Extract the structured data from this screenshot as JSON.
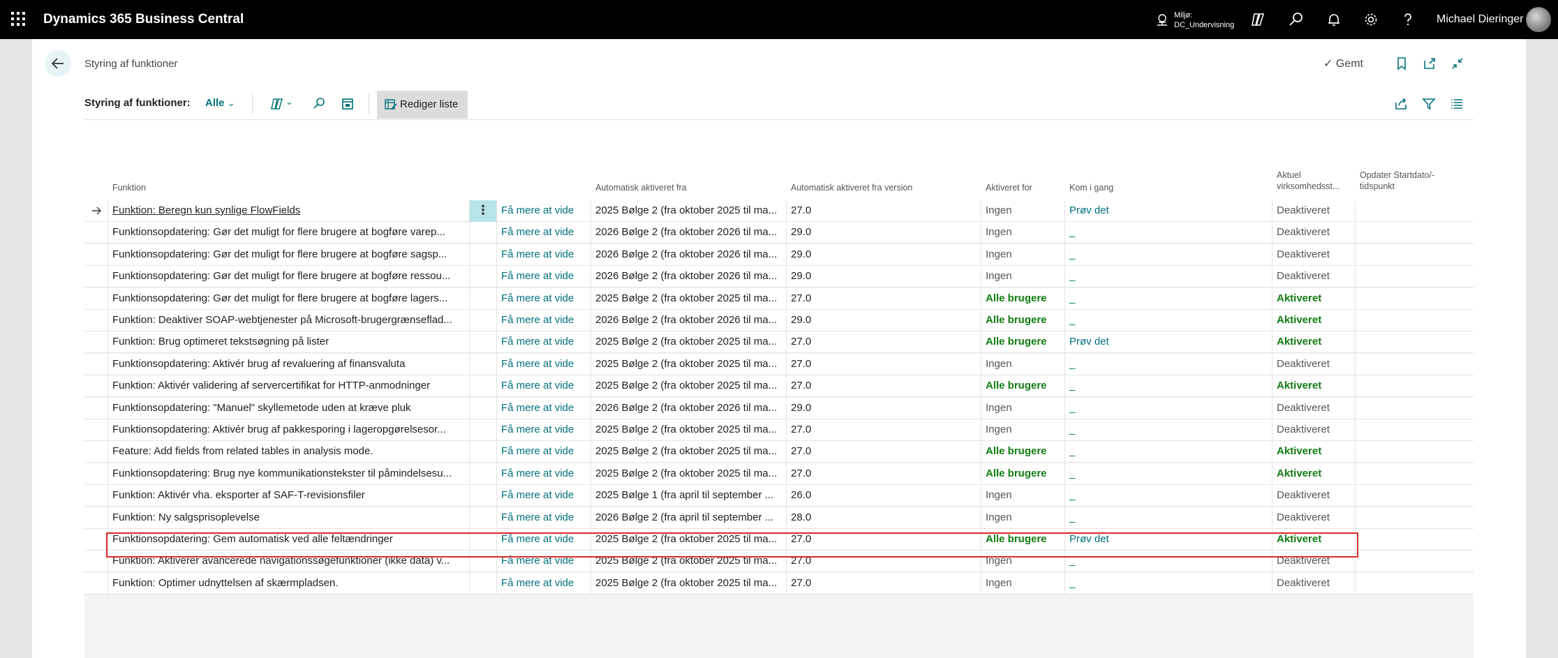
{
  "topbar": {
    "app_name": "Dynamics 365 Business Central",
    "environment_label": "Miljø:",
    "environment_name": "DC_Undervisning",
    "user_name": "Michael Dieringer"
  },
  "page": {
    "title": "Styring af funktioner",
    "saved_label": "Gemt"
  },
  "actionbar": {
    "label": "Styring af funktioner:",
    "filter_value": "Alle",
    "edit_list_label": "Rediger liste"
  },
  "columns": {
    "function": "Funktion",
    "auto_enabled_from": "Automatisk aktiveret fra",
    "auto_enabled_from_version": "Automatisk aktiveret fra version",
    "enabled_for": "Aktiveret for",
    "get_started": "Kom i gang",
    "current_status_1": "Aktuel",
    "current_status_2": "virksomhedsst...",
    "update_start_1": "Opdater Startdato/-",
    "update_start_2": "tidspunkt"
  },
  "rows": [
    {
      "func": "Funktion: Beregn kun synlige FlowFields",
      "more": "Få mere at vide",
      "auto": "2025 Bølge 2 (fra oktober 2025 til ma...",
      "ver": "27.0",
      "for": "Ingen",
      "start": "Prøv det",
      "status": "Deaktiveret"
    },
    {
      "func": "Funktionsopdatering: Gør det muligt for flere brugere at bogføre varep...",
      "more": "Få mere at vide",
      "auto": "2026 Bølge 2 (fra oktober 2026 til ma...",
      "ver": "29.0",
      "for": "Ingen",
      "start": "_",
      "status": "Deaktiveret"
    },
    {
      "func": "Funktionsopdatering: Gør det muligt for flere brugere at bogføre sagsp...",
      "more": "Få mere at vide",
      "auto": "2026 Bølge 2 (fra oktober 2026 til ma...",
      "ver": "29.0",
      "for": "Ingen",
      "start": "_",
      "status": "Deaktiveret"
    },
    {
      "func": "Funktionsopdatering: Gør det muligt for flere brugere at bogføre ressou...",
      "more": "Få mere at vide",
      "auto": "2026 Bølge 2 (fra oktober 2026 til ma...",
      "ver": "29.0",
      "for": "Ingen",
      "start": "_",
      "status": "Deaktiveret"
    },
    {
      "func": "Funktionsopdatering: Gør det muligt for flere brugere at bogføre lagers...",
      "more": "Få mere at vide",
      "auto": "2025 Bølge 2 (fra oktober 2025 til ma...",
      "ver": "27.0",
      "for": "Alle brugere",
      "start": "_",
      "status": "Aktiveret"
    },
    {
      "func": "Funktion: Deaktiver SOAP-webtjenester på Microsoft-brugergrænseflad...",
      "more": "Få mere at vide",
      "auto": "2026 Bølge 2 (fra oktober 2026 til ma...",
      "ver": "29.0",
      "for": "Alle brugere",
      "start": "_",
      "status": "Aktiveret"
    },
    {
      "func": "Funktion: Brug optimeret tekstsøgning på lister",
      "more": "Få mere at vide",
      "auto": "2025 Bølge 2 (fra oktober 2025 til ma...",
      "ver": "27.0",
      "for": "Alle brugere",
      "start": "Prøv det",
      "status": "Aktiveret"
    },
    {
      "func": "Funktionsopdatering: Aktivér brug af revaluering af finansvaluta",
      "more": "Få mere at vide",
      "auto": "2025 Bølge 2 (fra oktober 2025 til ma...",
      "ver": "27.0",
      "for": "Ingen",
      "start": "_",
      "status": "Deaktiveret"
    },
    {
      "func": "Funktion: Aktivér validering af servercertifikat for HTTP-anmodninger",
      "more": "Få mere at vide",
      "auto": "2025 Bølge 2 (fra oktober 2025 til ma...",
      "ver": "27.0",
      "for": "Alle brugere",
      "start": "_",
      "status": "Aktiveret"
    },
    {
      "func": "Funktionsopdatering: \"Manuel\" skyllemetode uden at kræve pluk",
      "more": "Få mere at vide",
      "auto": "2026 Bølge 2 (fra oktober 2026 til ma...",
      "ver": "29.0",
      "for": "Ingen",
      "start": "_",
      "status": "Deaktiveret"
    },
    {
      "func": "Funktionsopdatering: Aktivér brug af pakkesporing i lageropgørelsesor...",
      "more": "Få mere at vide",
      "auto": "2025 Bølge 2 (fra oktober 2025 til ma...",
      "ver": "27.0",
      "for": "Ingen",
      "start": "_",
      "status": "Deaktiveret"
    },
    {
      "func": "Feature: Add fields from related tables in analysis mode.",
      "more": "Få mere at vide",
      "auto": "2025 Bølge 2 (fra oktober 2025 til ma...",
      "ver": "27.0",
      "for": "Alle brugere",
      "start": "_",
      "status": "Aktiveret"
    },
    {
      "func": "Funktionsopdatering: Brug nye kommunikationstekster til påmindelsesu...",
      "more": "Få mere at vide",
      "auto": "2025 Bølge 2 (fra oktober 2025 til ma...",
      "ver": "27.0",
      "for": "Alle brugere",
      "start": "_",
      "status": "Aktiveret"
    },
    {
      "func": "Funktion: Aktivér vha. eksporter af SAF-T-revisionsfiler",
      "more": "Få mere at vide",
      "auto": "2025 Bølge 1 (fra april til september ...",
      "ver": "26.0",
      "for": "Ingen",
      "start": "_",
      "status": "Deaktiveret"
    },
    {
      "func": "Funktion: Ny salgsprisoplevelse",
      "more": "Få mere at vide",
      "auto": "2026 Bølge 2 (fra april til september ...",
      "ver": "28.0",
      "for": "Ingen",
      "start": "_",
      "status": "Deaktiveret"
    },
    {
      "func": "Funktionsopdatering: Gem automatisk ved alle feltændringer",
      "more": "Få mere at vide",
      "auto": "2025 Bølge 2 (fra oktober 2025 til ma...",
      "ver": "27.0",
      "for": "Alle brugere",
      "start": "Prøv det",
      "status": "Aktiveret"
    },
    {
      "func": "Funktion: Aktiverer avancerede navigationssøgefunktioner (ikke data) v...",
      "more": "Få mere at vide",
      "auto": "2025 Bølge 2 (fra oktober 2025 til ma...",
      "ver": "27.0",
      "for": "Ingen",
      "start": "_",
      "status": "Deaktiveret"
    },
    {
      "func": "Funktion: Optimer udnyttelsen af skærmpladsen.",
      "more": "Få mere at vide",
      "auto": "2025 Bølge 2 (fra oktober 2025 til ma...",
      "ver": "27.0",
      "for": "Ingen",
      "start": "_",
      "status": "Deaktiveret"
    }
  ],
  "colors": {
    "accent": "#00707c",
    "enabled": "#107c10",
    "highlight": "#d92b2b"
  }
}
